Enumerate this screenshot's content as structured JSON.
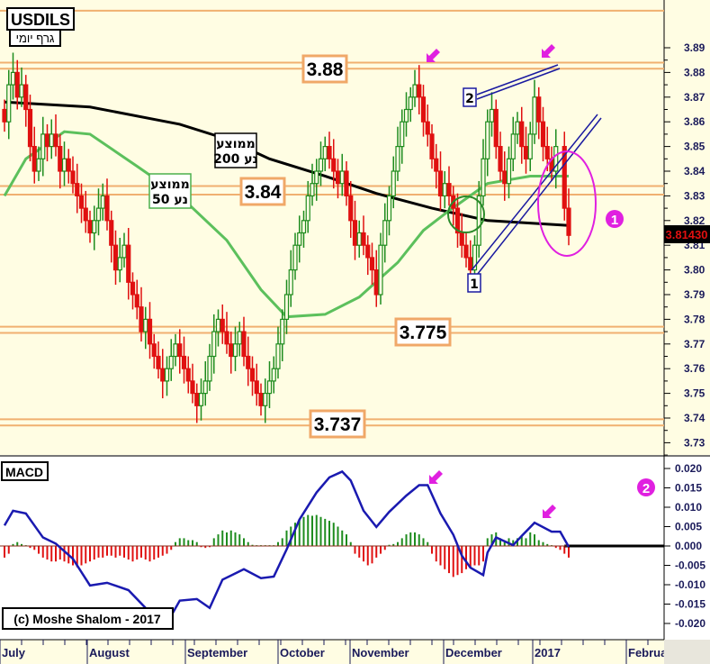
{
  "chart_data": [
    {
      "type": "candlestick",
      "title": "USDILS",
      "subtitle": "גרף יומי",
      "ylim": [
        3.725,
        3.91
      ],
      "yticks": [
        "3.89",
        "3.88",
        "3.87",
        "3.86",
        "3.85",
        "3.84",
        "3.83",
        "3.82",
        "3.81",
        "3.80",
        "3.79",
        "3.78",
        "3.77",
        "3.76",
        "3.75",
        "3.74",
        "3.73"
      ],
      "last_price": "3.81430",
      "closes": [
        3.86,
        3.875,
        3.88,
        3.87,
        3.875,
        3.865,
        3.85,
        3.84,
        3.845,
        3.855,
        3.85,
        3.855,
        3.85,
        3.84,
        3.845,
        3.84,
        3.835,
        3.83,
        3.825,
        3.82,
        3.815,
        3.82,
        3.825,
        3.83,
        3.82,
        3.81,
        3.8,
        3.805,
        3.81,
        3.795,
        3.79,
        3.785,
        3.775,
        3.78,
        3.77,
        3.765,
        3.76,
        3.755,
        3.76,
        3.765,
        3.77,
        3.765,
        3.76,
        3.755,
        3.75,
        3.745,
        3.75,
        3.755,
        3.765,
        3.775,
        3.78,
        3.775,
        3.77,
        3.765,
        3.77,
        3.775,
        3.765,
        3.76,
        3.755,
        3.75,
        3.745,
        3.75,
        3.755,
        3.76,
        3.77,
        3.78,
        3.79,
        3.8,
        3.81,
        3.815,
        3.82,
        3.83,
        3.835,
        3.84,
        3.845,
        3.85,
        3.845,
        3.84,
        3.835,
        3.84,
        3.83,
        3.82,
        3.81,
        3.815,
        3.81,
        3.805,
        3.8,
        3.79,
        3.81,
        3.82,
        3.83,
        3.84,
        3.85,
        3.86,
        3.865,
        3.87,
        3.875,
        3.87,
        3.86,
        3.855,
        3.845,
        3.84,
        3.83,
        3.835,
        3.83,
        3.825,
        3.815,
        3.81,
        3.805,
        3.8,
        3.81,
        3.83,
        3.845,
        3.86,
        3.865,
        3.85,
        3.84,
        3.835,
        3.845,
        3.855,
        3.86,
        3.85,
        3.845,
        3.855,
        3.87,
        3.86,
        3.85,
        3.845,
        3.84,
        3.85,
        null,
        3.825,
        3.814
      ],
      "ma200": {
        "label_line1": "ממוצע",
        "label_line2": "נע 200",
        "color": "#000000",
        "points": [
          [
            0,
            3.868
          ],
          [
            20,
            3.866
          ],
          [
            41,
            3.859
          ],
          [
            52,
            3.853
          ],
          [
            62,
            3.845
          ],
          [
            75,
            3.838
          ],
          [
            87,
            3.831
          ],
          [
            100,
            3.825
          ],
          [
            113,
            3.82
          ],
          [
            132,
            3.818
          ]
        ]
      },
      "ma50": {
        "label_line1": "ממוצע",
        "label_line2": "נע 50",
        "color": "#5cc05c",
        "points": [
          [
            0,
            3.83
          ],
          [
            5,
            3.845
          ],
          [
            14,
            3.856
          ],
          [
            20,
            3.855
          ],
          [
            31,
            3.842
          ],
          [
            41,
            3.83
          ],
          [
            52,
            3.812
          ],
          [
            60,
            3.792
          ],
          [
            66,
            3.781
          ],
          [
            75,
            3.782
          ],
          [
            83,
            3.789
          ],
          [
            92,
            3.803
          ],
          [
            98,
            3.816
          ],
          [
            104,
            3.824
          ],
          [
            113,
            3.835
          ],
          [
            123,
            3.838
          ],
          [
            132,
            3.838
          ]
        ]
      },
      "levels": [
        {
          "value": 3.905,
          "label": ""
        },
        {
          "value": 3.884,
          "label": "3.88"
        },
        {
          "value": 3.8815,
          "label": ""
        },
        {
          "value": 3.834,
          "label": "3.84"
        },
        {
          "value": 3.8305,
          "label": ""
        },
        {
          "value": 3.777,
          "label": "3.775"
        },
        {
          "value": 3.7745,
          "label": ""
        },
        {
          "value": 3.7395,
          "label": "3.737"
        },
        {
          "value": 3.737,
          "label": ""
        }
      ],
      "trendline_labels": [
        "1",
        "2"
      ],
      "callouts": [
        "❶",
        "❷"
      ]
    },
    {
      "type": "line+histogram",
      "title": "MACD",
      "ylim": [
        -0.024,
        0.023
      ],
      "yticks": [
        "0.020",
        "0.015",
        "0.010",
        "0.005",
        "0.000",
        "-0.005",
        "-0.010",
        "-0.015",
        "-0.020"
      ],
      "macd_line": [
        [
          0,
          0.0053
        ],
        [
          2,
          0.0091
        ],
        [
          5,
          0.0084
        ],
        [
          9,
          0.0022
        ],
        [
          12,
          0.0006
        ],
        [
          16,
          -0.0033
        ],
        [
          20,
          -0.0102
        ],
        [
          24,
          -0.0095
        ],
        [
          29,
          -0.0114
        ],
        [
          33,
          -0.016
        ],
        [
          36,
          -0.0188
        ],
        [
          39,
          -0.018
        ],
        [
          41,
          -0.0141
        ],
        [
          45,
          -0.0137
        ],
        [
          48,
          -0.016
        ],
        [
          51,
          -0.0087
        ],
        [
          56,
          -0.006
        ],
        [
          60,
          -0.0083
        ],
        [
          63,
          -0.0079
        ],
        [
          66,
          -0.0009
        ],
        [
          69,
          0.0068
        ],
        [
          73,
          0.0138
        ],
        [
          76,
          0.0177
        ],
        [
          79,
          0.0192
        ],
        [
          81,
          0.0169
        ],
        [
          84,
          0.0091
        ],
        [
          87,
          0.0049
        ],
        [
          90,
          0.0088
        ],
        [
          94,
          0.013
        ],
        [
          97,
          0.0157
        ],
        [
          99,
          0.0157
        ],
        [
          102,
          0.0084
        ],
        [
          105,
          0.0029
        ],
        [
          107,
          -0.0025
        ],
        [
          109,
          -0.0056
        ],
        [
          112,
          -0.0075
        ],
        [
          113,
          -0.0017
        ],
        [
          115,
          0.0022
        ],
        [
          119,
          0.0002
        ],
        [
          121,
          0.0026
        ],
        [
          124,
          0.006
        ],
        [
          128,
          0.0037
        ],
        [
          130,
          0.0037
        ],
        [
          132,
          -0.0002
        ]
      ],
      "histogram": [
        -0.003,
        -0.002,
        0.0005,
        0.001,
        0.0005,
        0.0002,
        -0.0005,
        -0.001,
        -0.002,
        -0.003,
        -0.0035,
        -0.004,
        -0.004,
        -0.0035,
        -0.004,
        -0.0045,
        -0.005,
        -0.0055,
        -0.005,
        -0.0045,
        -0.004,
        -0.0035,
        -0.003,
        -0.003,
        -0.0025,
        -0.0025,
        -0.003,
        -0.0025,
        -0.003,
        -0.0035,
        -0.004,
        -0.0035,
        -0.003,
        -0.0035,
        -0.004,
        -0.0035,
        -0.003,
        -0.0025,
        -0.002,
        -0.001,
        0.001,
        0.002,
        0.002,
        0.0015,
        0.0015,
        0.001,
        -0.0003,
        -0.0005,
        -0.0003,
        0.002,
        0.003,
        0.004,
        0.0035,
        0.004,
        0.0035,
        0.003,
        0.002,
        0.001,
        0.0003,
        0.0002,
        0.0002,
        0.0002,
        0.0002,
        0.0002,
        0.001,
        0.002,
        0.004,
        0.005,
        0.006,
        0.007,
        0.0075,
        0.008,
        0.0078,
        0.008,
        0.0075,
        0.007,
        0.0065,
        0.006,
        0.005,
        0.004,
        0.003,
        0.001,
        -0.002,
        -0.003,
        -0.004,
        -0.005,
        -0.0045,
        -0.003,
        -0.002,
        -0.001,
        0.0003,
        0.0005,
        0.001,
        0.002,
        0.003,
        0.0035,
        0.0035,
        0.003,
        0.002,
        0.001,
        -0.002,
        -0.004,
        -0.005,
        -0.006,
        -0.007,
        -0.008,
        -0.0075,
        -0.007,
        -0.006,
        -0.0055,
        -0.005,
        -0.005,
        -0.004,
        0.002,
        0.003,
        0.0035,
        0.002,
        0.001,
        0.002,
        0.0015,
        0.002,
        0.0025,
        0.002,
        0.0035,
        0.003,
        0.0015,
        0.001,
        0.0005,
        0.0002,
        -0.0005,
        -0.001,
        -0.002,
        -0.003
      ],
      "copyright": "(c) Moshe Shalom - 2017"
    }
  ],
  "x_axis": {
    "labels": [
      "July",
      "August",
      "September",
      "October",
      "November",
      "December",
      "2017",
      "February"
    ]
  },
  "colors": {
    "up": "#1e8c1e",
    "down": "#e01010",
    "level": "#f0b070",
    "trend": "#1a1aa0",
    "highlight": "#e020e0",
    "circle": "#2a8a2a",
    "background": "#fffde3",
    "macd_line": "#1a1ab0"
  }
}
